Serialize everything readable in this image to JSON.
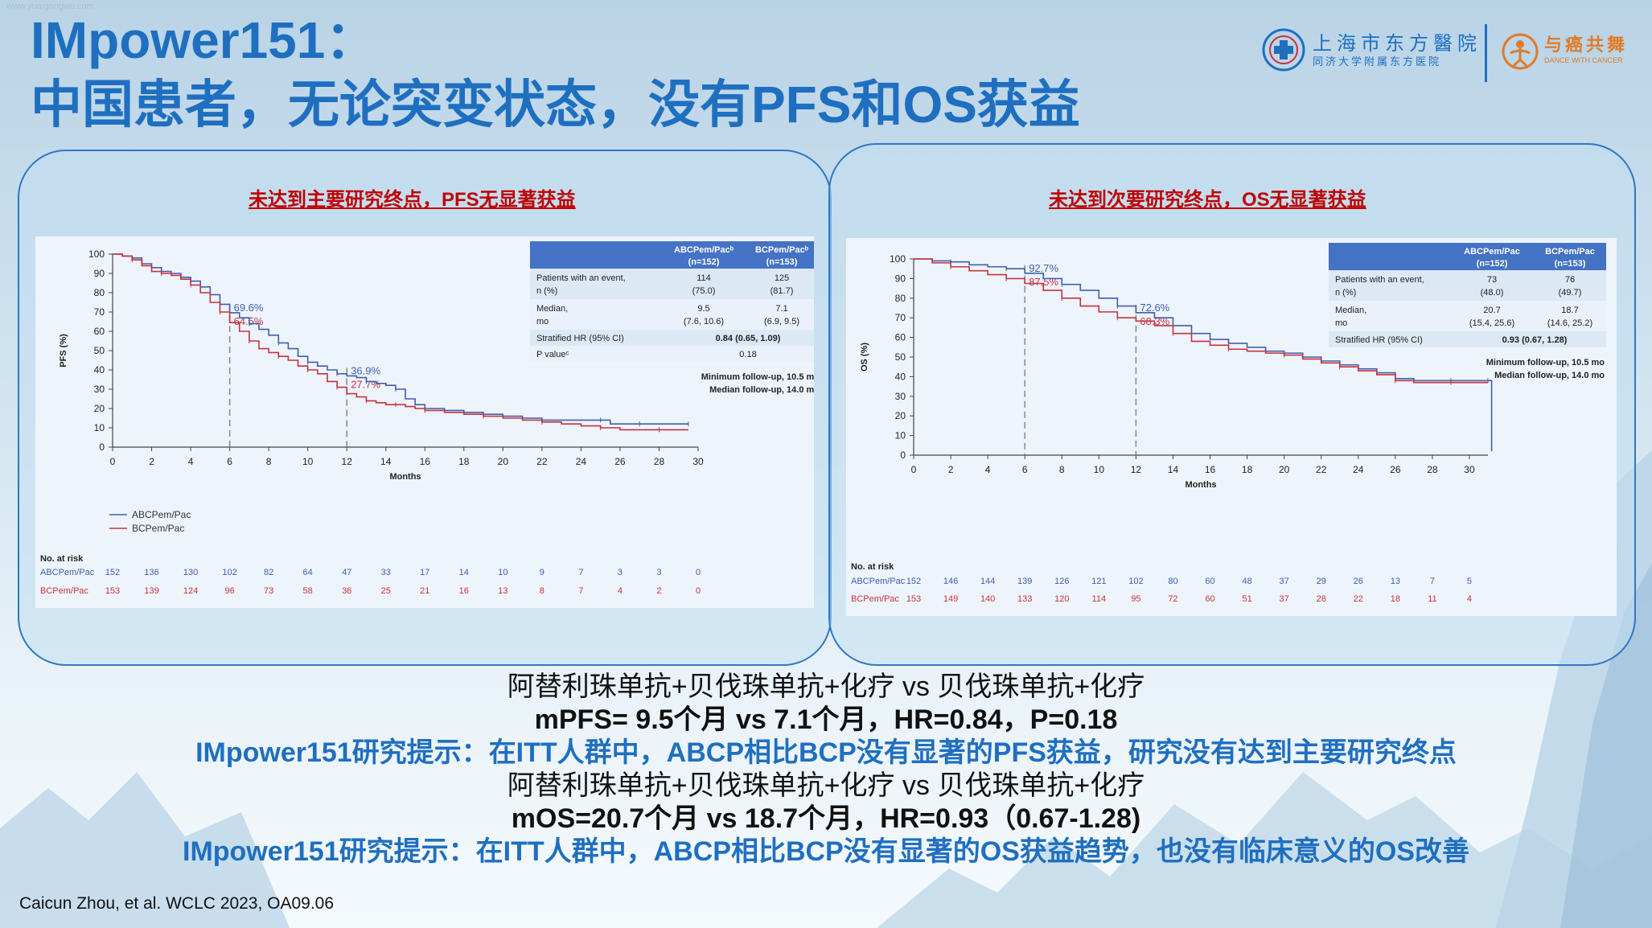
{
  "watermark": "www.yuaigongwu.com",
  "title": {
    "line1": "IMpower151：",
    "line2": "中国患者，无论突变状态，没有PFS和OS获益"
  },
  "logos": {
    "hospital_name": "上海市东方醫院",
    "hospital_sub": "同济大学附属东方医院",
    "partner_name": "与癌共舞",
    "partner_sub": "DANCE WITH CANCER"
  },
  "summary": {
    "line1": "阿替利珠单抗+贝伐珠单抗+化疗 vs 贝伐珠单抗+化疗",
    "line2": "mPFS= 9.5个月 vs 7.1个月，HR=0.84，P=0.18",
    "line3": "IMpower151研究提示：在ITT人群中，ABCP相比BCP没有显著的PFS获益，研究没有达到主要研究终点",
    "line4": "阿替利珠单抗+贝伐珠单抗+化疗 vs 贝伐珠单抗+化疗",
    "line5": "mOS=20.7个月 vs 18.7个月，HR=0.93（0.67-1.28)",
    "line6": "IMpower151研究提示：在ITT人群中，ABCP相比BCP没有显著的OS获益趋势，也没有临床意义的OS改善"
  },
  "citation": "Caicun Zhou, et al. WCLC 2023, OA09.06",
  "colors": {
    "abcp": "#3e5fb0",
    "bcp": "#c8313d",
    "title": "#1f6fc0",
    "heading": "#c00000",
    "table_header": "#4472c4"
  },
  "chart_data": [
    {
      "type": "line",
      "heading": "未达到主要研究终点，PFS无显著获益",
      "ylabel": "PFS (%)",
      "xlabel": "Months",
      "xlim": [
        0,
        30
      ],
      "ylim": [
        0,
        100
      ],
      "xticks": [
        0,
        2,
        4,
        6,
        8,
        10,
        12,
        14,
        16,
        18,
        20,
        22,
        24,
        26,
        28,
        30
      ],
      "yticks": [
        0,
        10,
        20,
        30,
        40,
        50,
        60,
        70,
        80,
        90,
        100
      ],
      "legend": [
        "ABCPem/Pac",
        "BCPem/Pac"
      ],
      "legend_position": "bottom-left",
      "series": [
        {
          "name": "ABCPem/Pac",
          "x": [
            0,
            0.5,
            1,
            1.5,
            2,
            2.5,
            3,
            3.5,
            4,
            4.5,
            5,
            5.5,
            6,
            6.5,
            7,
            7.5,
            8,
            8.5,
            9,
            9.5,
            10,
            10.5,
            11,
            11.5,
            12,
            12.5,
            13,
            13.5,
            14,
            14.5,
            15,
            15.5,
            16,
            17,
            18,
            19,
            20,
            21,
            22,
            23,
            24,
            25,
            25.5,
            26,
            27,
            28,
            29,
            29.5
          ],
          "y": [
            100,
            99,
            98,
            95,
            93,
            91,
            90,
            88,
            86,
            83,
            79,
            74,
            69.6,
            67,
            64,
            61,
            58,
            54,
            51,
            47,
            44,
            42,
            40,
            38,
            36.9,
            36,
            34,
            33,
            32,
            30,
            25,
            22,
            20,
            19,
            18,
            17,
            16,
            15,
            14,
            14,
            14,
            14,
            12,
            12,
            12,
            12,
            12,
            12
          ]
        },
        {
          "name": "BCPem/Pac",
          "x": [
            0,
            0.5,
            1,
            1.5,
            2,
            2.5,
            3,
            3.5,
            4,
            4.5,
            5,
            5.5,
            6,
            6.5,
            7,
            7.5,
            8,
            8.5,
            9,
            9.5,
            10,
            10.5,
            11,
            11.5,
            12,
            12.5,
            13,
            13.5,
            14,
            14.5,
            15,
            15.5,
            16,
            17,
            18,
            19,
            20,
            21,
            22,
            23,
            24,
            25,
            26,
            27,
            28,
            29,
            29.5
          ],
          "y": [
            100,
            99,
            97,
            94,
            91,
            90,
            89,
            87,
            84,
            80,
            75,
            70,
            64.5,
            60,
            55,
            51,
            49,
            47,
            45,
            42,
            40,
            38,
            34,
            31,
            27.7,
            26,
            24,
            23,
            22,
            22,
            21,
            20,
            19,
            18,
            17,
            16,
            15,
            14,
            13,
            12,
            11,
            10,
            9,
            9,
            9,
            9,
            9
          ]
        }
      ],
      "annotations": [
        {
          "x": 6,
          "abcp": "69.6%",
          "bcp": "64.5%"
        },
        {
          "x": 12,
          "abcp": "36.9%",
          "bcp": "27.7%"
        }
      ],
      "table": {
        "headers": [
          "",
          "ABCPem/Pacᵇ (n=152)",
          "BCPem/Pacᵇ (n=153)"
        ],
        "rows": [
          [
            "Patients with an event, n (%)",
            "114 (75.0)",
            "125 (81.7)"
          ],
          [
            "Median, mo 95% CI",
            "9.5 (7.6, 10.6)",
            "7.1 (6.9, 9.5)"
          ],
          [
            "Stratified HR (95% CI)",
            "0.84 (0.65, 1.09)"
          ],
          [
            "P valueᶜ",
            "0.18"
          ]
        ],
        "followup": [
          "Minimum follow-up, 10.5 mo",
          "Median follow-up, 14.0 mo"
        ]
      },
      "at_risk": {
        "label": "No. at risk",
        "rows": [
          {
            "name": "ABCPem/Pac",
            "values": [
              "152",
              "136",
              "130",
              "102",
              "82",
              "64",
              "47",
              "33",
              "17",
              "14",
              "10",
              "9",
              "7",
              "3",
              "3",
              "0"
            ]
          },
          {
            "name": "BCPem/Pac",
            "values": [
              "153",
              "139",
              "124",
              "96",
              "73",
              "58",
              "36",
              "25",
              "21",
              "16",
              "13",
              "8",
              "7",
              "4",
              "2",
              "0"
            ]
          }
        ]
      }
    },
    {
      "type": "line",
      "heading": "未达到次要研究终点，OS无显著获益",
      "ylabel": "OS (%)",
      "xlabel": "Months",
      "xlim": [
        0,
        31
      ],
      "ylim": [
        0,
        100
      ],
      "xticks": [
        0,
        2,
        4,
        6,
        8,
        10,
        12,
        14,
        16,
        18,
        20,
        22,
        24,
        26,
        28,
        30
      ],
      "yticks": [
        0,
        10,
        20,
        30,
        40,
        50,
        60,
        70,
        80,
        90,
        100
      ],
      "legend": [
        "ABCPem/Pac",
        "BCPem/Pac"
      ],
      "series": [
        {
          "name": "ABCPem/Pac",
          "x": [
            0,
            1,
            2,
            3,
            4,
            5,
            6,
            7,
            8,
            9,
            10,
            11,
            12,
            13,
            14,
            15,
            16,
            17,
            18,
            19,
            20,
            21,
            22,
            23,
            24,
            25,
            26,
            27,
            28,
            29,
            30,
            30.5,
            31,
            31.2
          ],
          "y": [
            100,
            99,
            98.5,
            97,
            96,
            95,
            92.7,
            90,
            87,
            84,
            80,
            76,
            72.6,
            70,
            66,
            62,
            59,
            57,
            55,
            53,
            52,
            50,
            48,
            46,
            44,
            42,
            39,
            38,
            38,
            38,
            38,
            38,
            38,
            2
          ]
        },
        {
          "name": "BCPem/Pac",
          "x": [
            0,
            1,
            2,
            3,
            4,
            5,
            6,
            7,
            8,
            9,
            10,
            11,
            12,
            13,
            14,
            15,
            16,
            17,
            18,
            19,
            20,
            21,
            22,
            23,
            24,
            25,
            26,
            27,
            28,
            29,
            30,
            31
          ],
          "y": [
            100,
            98,
            96,
            94,
            92,
            90,
            87.5,
            84,
            80,
            76,
            73,
            70,
            68.3,
            66,
            62,
            58,
            56,
            54,
            53,
            52,
            51,
            49,
            47,
            45,
            43,
            41,
            38,
            37,
            37,
            37,
            37,
            37
          ]
        }
      ],
      "annotations": [
        {
          "x": 6,
          "abcp": "92.7%",
          "bcp": "87.5%"
        },
        {
          "x": 12,
          "abcp": "72.6%",
          "bcp": "68.3%"
        }
      ],
      "table": {
        "headers": [
          "",
          "ABCPem/Pac (n=152)",
          "BCPem/Pac (n=153)"
        ],
        "rows": [
          [
            "Patients with an event, n (%)",
            "73 (48.0)",
            "76 (49.7)"
          ],
          [
            "Median, mo (95% CI)",
            "20.7 (15.4, 25.6)",
            "18.7 (14.6, 25.2)"
          ],
          [
            "Stratified HR (95% CI)",
            "0.93 (0.67, 1.28)"
          ]
        ],
        "followup": [
          "Minimum follow-up, 10.5 mo",
          "Median follow-up, 14.0 mo"
        ]
      },
      "at_risk": {
        "label": "No. at risk",
        "rows": [
          {
            "name": "ABCPem/Pac",
            "values": [
              "152",
              "146",
              "144",
              "139",
              "126",
              "121",
              "102",
              "80",
              "60",
              "48",
              "37",
              "29",
              "26",
              "13",
              "7",
              "5"
            ]
          },
          {
            "name": "BCPem/Pac",
            "values": [
              "153",
              "149",
              "140",
              "133",
              "120",
              "114",
              "95",
              "72",
              "60",
              "51",
              "37",
              "28",
              "22",
              "18",
              "11",
              "4"
            ]
          }
        ]
      }
    }
  ]
}
